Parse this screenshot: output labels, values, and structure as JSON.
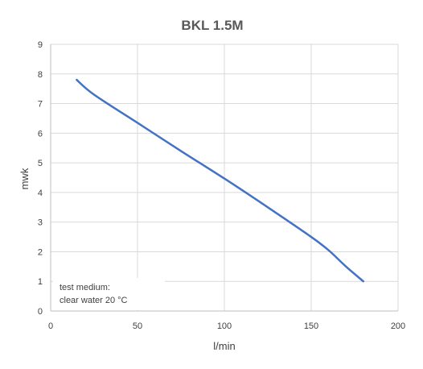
{
  "chart_data": {
    "type": "line",
    "title": "BKL 1.5M",
    "xlabel": "l/min",
    "ylabel": "mwk",
    "xlim": [
      0,
      200
    ],
    "ylim": [
      0,
      9
    ],
    "x_ticks": [
      "0",
      "50",
      "100",
      "150",
      "200"
    ],
    "y_ticks": [
      "0",
      "1",
      "2",
      "3",
      "4",
      "5",
      "6",
      "7",
      "8",
      "9"
    ],
    "grid": true,
    "annotation": [
      "test medium:",
      "clear water 20 °C"
    ],
    "series": [
      {
        "color": "#4472c4",
        "x": [
          15,
          25,
          50,
          75,
          100,
          125,
          150,
          160,
          170,
          180
        ],
        "y": [
          7.8,
          7.3,
          6.35,
          5.4,
          4.47,
          3.5,
          2.5,
          2.05,
          1.5,
          1.0
        ]
      }
    ]
  }
}
